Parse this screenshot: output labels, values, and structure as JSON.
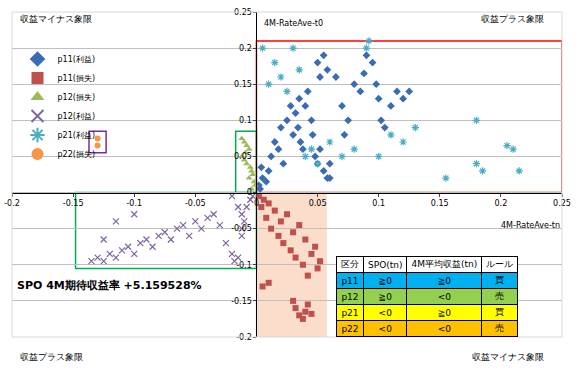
{
  "chart_data": {
    "type": "scatter",
    "x_label": "4M-RateAve-tn",
    "y_label": "4M-RateAve-t0",
    "quadrant_labels": {
      "top_left": "収益マイナス象限",
      "top_right": "収益プラス象限",
      "bottom_left": "収益プラス象限",
      "bottom_right": "収益マイナス象限"
    },
    "note": "SPO 4M期待収益率 +5.159528%",
    "xlim": [
      -0.2,
      0.25
    ],
    "ylim": [
      -0.2,
      0.25
    ],
    "xticks": [
      -0.2,
      -0.15,
      -0.1,
      -0.05,
      0,
      0.05,
      0.1,
      0.15,
      0.2,
      0.25
    ],
    "yticks": [
      -0.2,
      -0.15,
      -0.1,
      -0.05,
      0,
      0.05,
      0.1,
      0.15,
      0.2,
      0.25
    ],
    "grid": true,
    "legend": "top left",
    "series": [
      {
        "name": "p11(利益)",
        "color": "#3a6bb5",
        "marker": "diamond",
        "x": [
          0.01,
          0.012,
          0.015,
          0.02,
          0.018,
          0.022,
          0.025,
          0.028,
          0.03,
          0.032,
          0.035,
          0.034,
          0.036,
          0.038,
          0.04,
          0.042,
          0.045,
          0.046,
          0.048,
          0.05,
          0.052,
          0.055,
          0.058,
          0.06,
          0.05,
          0.052,
          0.055,
          0.058,
          0.065,
          0.07,
          0.072,
          0.075,
          0.08,
          0.085,
          0.09,
          0.095,
          0.1,
          0.102,
          0.105,
          0.11,
          0.115,
          0.12,
          0.125,
          0.06,
          0.008,
          0.003,
          0.005,
          0.098,
          0.088,
          0.002,
          0.004
        ],
        "values": [
          0.03,
          0.05,
          0.07,
          0.09,
          0.06,
          0.04,
          0.1,
          0.12,
          0.08,
          0.11,
          0.13,
          0.09,
          0.07,
          0.06,
          0.12,
          0.14,
          0.1,
          0.08,
          0.05,
          0.04,
          0.06,
          0.03,
          0.02,
          0.04,
          0.18,
          0.16,
          0.19,
          0.17,
          0.16,
          0.12,
          0.08,
          0.1,
          0.15,
          0.14,
          0.19,
          0.18,
          0.13,
          0.1,
          0.09,
          0.12,
          0.14,
          0.13,
          0.14,
          0.02,
          0.015,
          0.005,
          0.02,
          0.15,
          0.165,
          0.01,
          0.035
        ]
      },
      {
        "name": "p11(損失)",
        "color": "#c0504d",
        "marker": "square",
        "x": [
          0.002,
          0.004,
          0.006,
          0.008,
          0.01,
          0.012,
          0.015,
          0.018,
          0.02,
          0.022,
          0.025,
          0.028,
          0.03,
          0.032,
          0.035,
          0.038,
          0.04,
          0.042,
          0.045,
          0.048,
          0.05,
          0.052,
          0.03,
          0.032,
          0.035,
          0.038,
          0.04,
          0.042,
          0.045,
          0.005,
          0.01
        ],
        "values": [
          -0.005,
          -0.02,
          -0.01,
          -0.035,
          -0.015,
          -0.05,
          -0.025,
          -0.06,
          -0.04,
          -0.07,
          -0.03,
          -0.08,
          -0.055,
          -0.09,
          -0.045,
          -0.1,
          -0.065,
          -0.115,
          -0.085,
          -0.075,
          -0.105,
          -0.095,
          -0.15,
          -0.16,
          -0.17,
          -0.175,
          -0.165,
          -0.155,
          -0.168,
          -0.13,
          -0.125
        ]
      },
      {
        "name": "p12(損失)",
        "color": "#9bbb59",
        "marker": "triangle-up",
        "x": [
          -0.012,
          -0.01,
          -0.008,
          -0.006,
          -0.012,
          -0.01,
          -0.008,
          -0.005,
          -0.004,
          -0.003,
          -0.006,
          -0.002,
          -0.001,
          -0.004,
          -0.009
        ],
        "values": [
          0.075,
          0.07,
          0.065,
          0.06,
          0.05,
          0.045,
          0.04,
          0.035,
          0.03,
          0.025,
          0.02,
          0.015,
          0.01,
          0.005,
          0.055
        ]
      },
      {
        "name": "p12(利益)",
        "color": "#8064a2",
        "marker": "x-thin",
        "x": [
          -0.135,
          -0.13,
          -0.125,
          -0.12,
          -0.115,
          -0.11,
          -0.105,
          -0.1,
          -0.095,
          -0.09,
          -0.085,
          -0.08,
          -0.075,
          -0.07,
          -0.065,
          -0.06,
          -0.055,
          -0.05,
          -0.045,
          -0.04,
          -0.035,
          -0.03,
          -0.025,
          -0.02,
          -0.018,
          -0.015,
          -0.012,
          -0.01,
          -0.008,
          -0.005,
          -0.003,
          -0.015,
          -0.02,
          -0.1,
          -0.115,
          -0.125,
          -0.012,
          -0.012
        ],
        "values": [
          -0.095,
          -0.09,
          -0.095,
          -0.085,
          -0.09,
          -0.08,
          -0.075,
          -0.085,
          -0.07,
          -0.065,
          -0.075,
          -0.06,
          -0.055,
          -0.065,
          -0.05,
          -0.045,
          -0.06,
          -0.04,
          -0.05,
          -0.035,
          -0.03,
          -0.045,
          -0.07,
          -0.085,
          -0.095,
          -0.09,
          -0.06,
          -0.04,
          -0.02,
          -0.01,
          -0.005,
          -0.02,
          -0.005,
          -0.03,
          -0.04,
          -0.065,
          -0.03,
          -0.05
        ]
      },
      {
        "name": "p21(利益)",
        "color": "#4bacc6",
        "marker": "asterisk",
        "x": [
          0.005,
          0.01,
          0.015,
          0.02,
          0.025,
          0.03,
          0.035,
          0.04,
          0.045,
          0.05,
          0.06,
          0.07,
          0.08,
          0.09,
          0.092,
          0.1,
          0.11,
          0.12,
          0.13,
          0.155,
          0.18,
          0.185,
          0.18,
          0.205,
          0.21,
          0.215
        ],
        "values": [
          0.2,
          0.15,
          0.18,
          0.16,
          0.14,
          0.2,
          0.17,
          0.05,
          0.06,
          0.04,
          0.07,
          0.05,
          0.06,
          0.2,
          0.21,
          0.05,
          0.08,
          0.07,
          0.09,
          0.02,
          0.1,
          0.03,
          0.04,
          0.065,
          0.06,
          0.03
        ]
      },
      {
        "name": "p22(損失)",
        "color": "#f79646",
        "marker": "circle",
        "x": [
          -0.13,
          -0.13
        ],
        "values": [
          0.065,
          0.075
        ]
      }
    ],
    "regions": [
      {
        "x0": 0,
        "x1": 0.25,
        "y0": 0,
        "y1": 0.21,
        "color": "#ff0000",
        "fill": false
      },
      {
        "x0": -0.017,
        "x1": 0,
        "y0": 0,
        "y1": 0.085,
        "color": "#00b050",
        "fill": false
      },
      {
        "x0": -0.148,
        "x1": 0,
        "y0": -0.105,
        "y1": 0,
        "color": "#00b050",
        "fill": false
      },
      {
        "x0": 0,
        "x1": 0.057,
        "y0": -0.2,
        "y1": 0,
        "color": "#f4a070",
        "fill": true
      },
      {
        "x0": -0.137,
        "x1": -0.123,
        "y0": 0.055,
        "y1": 0.085,
        "color": "#7030a0",
        "fill": false
      }
    ],
    "table": {
      "header": [
        "区分",
        "SPO(tn)",
        "4M平均収益(tn)",
        "ルール"
      ],
      "rows": [
        [
          "p11",
          "≧0",
          "≧0",
          "買"
        ],
        [
          "p12",
          "≧0",
          "<0",
          "売"
        ],
        [
          "p21",
          "<0",
          "≧0",
          "買"
        ],
        [
          "p22",
          "<0",
          "<0",
          "売"
        ]
      ],
      "colors": [
        "#00b0f0",
        "#92d050",
        "#ffff00",
        "#ffc000"
      ]
    }
  }
}
